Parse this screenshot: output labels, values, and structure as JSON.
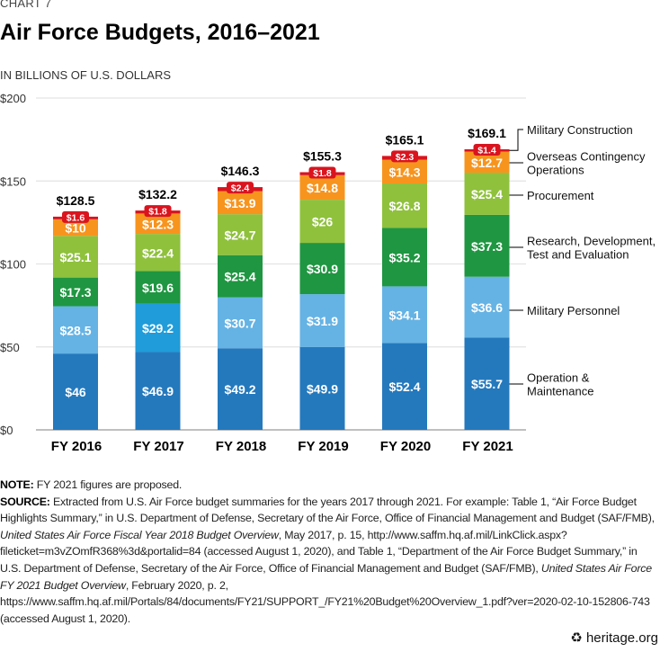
{
  "kicker": "CHART 7",
  "chart_data": {
    "type": "bar",
    "stacked": true,
    "title": "Air Force Budgets, 2016–2021",
    "ylabel": "IN BILLIONS OF U.S. DOLLARS",
    "ylim": [
      0,
      200
    ],
    "yticks": [
      0,
      50,
      100,
      150,
      200
    ],
    "ytick_labels": [
      "$0",
      "$50",
      "$100",
      "$150",
      "$200"
    ],
    "grid": true,
    "legend_placement": "right",
    "categories": [
      "FY 2016",
      "FY 2017",
      "FY 2018",
      "FY 2019",
      "FY 2020",
      "FY 2021"
    ],
    "totals": [
      128.5,
      132.2,
      146.3,
      155.3,
      165.1,
      169.1
    ],
    "total_labels": [
      "$128.5",
      "$132.2",
      "$146.3",
      "$155.3",
      "$165.1",
      "$169.1"
    ],
    "series": [
      {
        "name": "Operation & Maintenance",
        "color": "#2479bd",
        "values": [
          46,
          46.9,
          49.2,
          49.9,
          52.4,
          55.7
        ],
        "labels": [
          "$46",
          "$46.9",
          "$49.2",
          "$49.9",
          "$52.4",
          "$55.7"
        ]
      },
      {
        "name": "Military Personnel",
        "color": "#65b3e4",
        "alt_colors": {
          "FY 2017": "#1f9cd9"
        },
        "values": [
          28.5,
          29.2,
          30.7,
          31.9,
          34.1,
          36.6
        ],
        "labels": [
          "$28.5",
          "$29.2",
          "$30.7",
          "$31.9",
          "$34.1",
          "$36.6"
        ]
      },
      {
        "name": "Research, Development, Test and Evaluation",
        "color": "#1f9641",
        "values": [
          17.3,
          19.6,
          25.4,
          30.9,
          35.2,
          37.3
        ],
        "labels": [
          "$17.3",
          "$19.6",
          "$25.4",
          "$30.9",
          "$35.2",
          "$37.3"
        ]
      },
      {
        "name": "Procurement",
        "color": "#8fc13d",
        "values": [
          25.1,
          22.4,
          24.7,
          26,
          26.8,
          25.4
        ],
        "labels": [
          "$25.1",
          "$22.4",
          "$24.7",
          "$26",
          "$26.8",
          "$25.4"
        ]
      },
      {
        "name": "Overseas Contingency Operations",
        "color": "#f7941e",
        "values": [
          10,
          12.3,
          13.9,
          14.8,
          14.3,
          12.7
        ],
        "labels": [
          "$10",
          "$12.3",
          "$13.9",
          "$14.8",
          "$14.3",
          "$12.7"
        ]
      },
      {
        "name": "Military Construction",
        "color": "#d9141f",
        "values": [
          1.6,
          1.8,
          2.4,
          1.8,
          2.3,
          1.4
        ],
        "labels": [
          "$1.6",
          "$1.8",
          "$2.4",
          "$1.8",
          "$2.3",
          "$1.4"
        ]
      }
    ]
  },
  "notes": {
    "note_label": "NOTE:",
    "note_text": " FY 2021 figures are proposed.",
    "source_label": "SOURCE:",
    "source_parts": [
      " Extracted from U.S. Air Force budget summaries for the years 2017 through 2021. For example: Table 1, “Air Force Budget Highlights Summary,” in U.S. Department of Defense, Secretary of the Air Force, Office of Financial Management and Budget (SAF/FMB), ",
      "United States Air Force Fiscal Year 2018 Budget Overview",
      ", May 2017, p. 15, http://www.saffm.hq.af.mil/LinkClick.aspx?fileticket=m3vZOmfR368%3d&portalid=84 (accessed August 1, 2020), and Table 1, “Department of the Air Force Budget Summary,” in U.S. Department of Defense, Secretary of the Air Force, Office of Financial Management and Budget (SAF/FMB), ",
      "United States Air Force FY 2021 Budget Overview",
      ", February 2020, p. 2, https://www.saffm.hq.af.mil/Portals/84/documents/FY21/SUPPORT_/FY21%20Budget%20Overview_1.pdf?ver=2020-02-10-152806-743 (accessed August 1, 2020)."
    ]
  },
  "logo": {
    "text": "heritage.org",
    "icon": "liberty-bell-icon"
  }
}
